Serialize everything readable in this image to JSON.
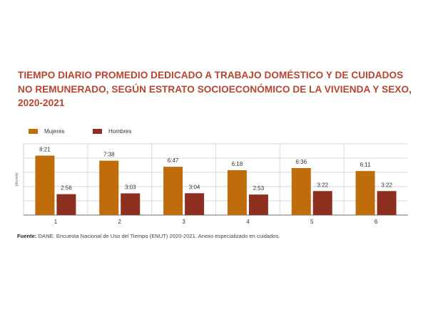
{
  "title": "TIEMPO DIARIO PROMEDIO DEDICADO A TRABAJO DOMÉSTICO Y DE CUIDADOS NO REMUNERADO, SEGÚN ESTRATO SOCIOECONÓMICO DE LA VIVIENDA Y SEXO, 2020-2021",
  "source": {
    "label": "Fuente:",
    "text": " DANE. Encuesta Nacional de Uso del Tiempo (ENUT) 2020-2021. Anexo especializado en cuidados."
  },
  "colors": {
    "mujeres": "#bf6d0a",
    "hombres": "#8c2f1f",
    "title": "#b7452f"
  },
  "chart_data": {
    "type": "bar",
    "title": "TIEMPO DIARIO PROMEDIO DEDICADO A TRABAJO DOMÉSTICO Y DE CUIDADOS NO REMUNERADO, SEGÚN ESTRATO SOCIOECONÓMICO DE LA VIVIENDA Y SEXO, 2020-2021",
    "xlabel": "",
    "ylabel": "(hh:mm)",
    "categories": [
      "1",
      "2",
      "3",
      "4",
      "5",
      "6"
    ],
    "series": [
      {
        "name": "Mujeres",
        "values": [
          "8:21",
          "7:38",
          "6:47",
          "6:18",
          "6:36",
          "6:11"
        ]
      },
      {
        "name": "Hombres",
        "values": [
          "2:56",
          "3:03",
          "3:04",
          "2:53",
          "3:22",
          "3:22"
        ]
      }
    ],
    "ylim": [
      "0:00",
      "10:00"
    ],
    "grid": true,
    "legend": "top-left"
  }
}
